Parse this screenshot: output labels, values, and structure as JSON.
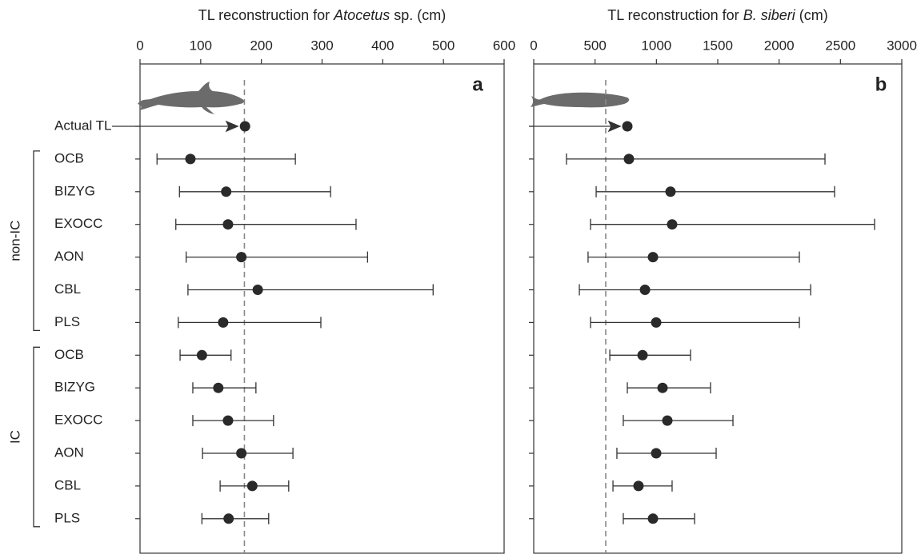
{
  "chart_data": [
    {
      "type": "interval",
      "panel": "a",
      "title": {
        "before": "TL reconstruction for ",
        "italic": "Atocetus",
        "after": " sp. (cm)"
      },
      "categories": [
        "Actual TL",
        "OCB",
        "BIZYG",
        "EXOCC",
        "AON",
        "CBL",
        "PLS",
        "OCB",
        "BIZYG",
        "EXOCC",
        "AON",
        "CBL",
        "PLS"
      ],
      "groups": [
        {
          "label": "non-IC",
          "rows": [
            1,
            6
          ]
        },
        {
          "label": "IC",
          "rows": [
            7,
            12
          ]
        }
      ],
      "values": [
        173,
        83,
        142,
        145,
        167,
        194,
        137,
        102,
        129,
        145,
        167,
        185,
        146
      ],
      "lower": [
        null,
        28,
        65,
        59,
        76,
        79,
        63,
        66,
        87,
        87,
        103,
        132,
        102
      ],
      "upper": [
        null,
        256,
        314,
        356,
        375,
        483,
        298,
        150,
        191,
        220,
        252,
        245,
        212
      ],
      "reference": 172,
      "color": "#2a2a2a",
      "xlim": [
        0,
        600
      ],
      "xticks": [
        0,
        100,
        200,
        300,
        400,
        500,
        600
      ]
    },
    {
      "type": "interval",
      "panel": "b",
      "title": {
        "before": "TL reconstruction for ",
        "italic": "B. siberi",
        "after": " (cm)"
      },
      "values": [
        763,
        776,
        1115,
        1128,
        972,
        907,
        998,
        887,
        1050,
        1089,
        998,
        854,
        972
      ],
      "lower": [
        null,
        267,
        509,
        463,
        443,
        372,
        463,
        620,
        763,
        730,
        678,
        646,
        730
      ],
      "upper": [
        null,
        2374,
        2452,
        2778,
        2165,
        2257,
        2165,
        1278,
        1441,
        1624,
        1487,
        1128,
        1311
      ],
      "reference": 587,
      "color": "#2a2a2a",
      "xlim": [
        0,
        3000
      ],
      "xticks": [
        0,
        500,
        1000,
        1500,
        2000,
        2500,
        3000
      ]
    }
  ]
}
